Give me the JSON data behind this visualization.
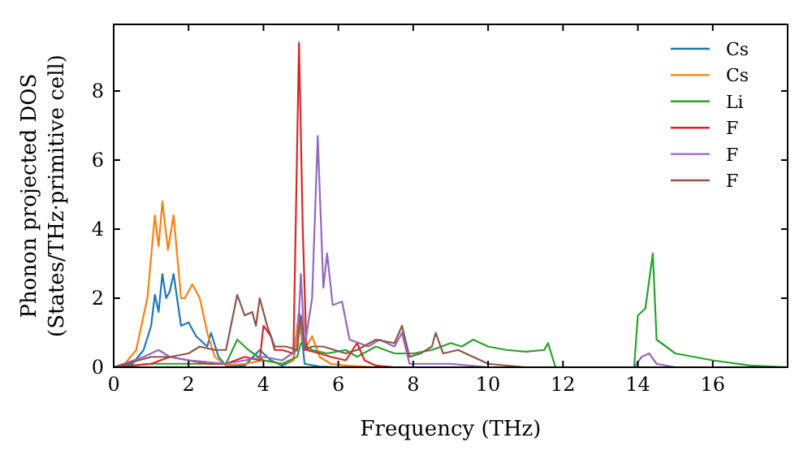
{
  "chart_data": {
    "type": "line",
    "xlabel": "Frequency (THz)",
    "ylabel": "Phonon projected DOS\n(States/THz·primitive cell)",
    "xlim": [
      0,
      18
    ],
    "xticks": [
      0,
      2,
      4,
      6,
      8,
      10,
      12,
      14,
      16
    ],
    "ylim": [
      0,
      9.93
    ],
    "yticks": [
      0,
      2,
      4,
      6,
      8
    ],
    "grid": false,
    "legend": "top right",
    "marker": "none",
    "line_style": "solid",
    "series": [
      {
        "name": "Cs",
        "color": "#1f77b4",
        "x": [
          0,
          0.5,
          0.8,
          1.0,
          1.1,
          1.2,
          1.3,
          1.4,
          1.5,
          1.6,
          1.8,
          2.0,
          2.2,
          2.5,
          2.6,
          2.8,
          3.0,
          3.5,
          3.9,
          4.2,
          4.5,
          4.8,
          4.95,
          5.1,
          5.5,
          6
        ],
        "values": [
          0,
          0.1,
          0.5,
          1.2,
          2.1,
          1.6,
          2.7,
          2.0,
          2.2,
          2.7,
          1.2,
          1.3,
          0.9,
          0.6,
          1.0,
          0.3,
          0.05,
          0.05,
          0.5,
          0.2,
          0.05,
          0.2,
          1.6,
          0.1,
          0.02,
          0
        ]
      },
      {
        "name": "Cs",
        "color": "#ff7f0e",
        "x": [
          0,
          0.3,
          0.6,
          0.9,
          1.1,
          1.2,
          1.3,
          1.45,
          1.6,
          1.8,
          1.9,
          2.1,
          2.3,
          2.5,
          2.7,
          3.0,
          3.5,
          4.0,
          4.5,
          4.8,
          4.95,
          5.1,
          5.3,
          5.5,
          5.8,
          6.2,
          7,
          18
        ],
        "values": [
          0,
          0.1,
          0.5,
          2.0,
          4.4,
          3.5,
          4.8,
          3.4,
          4.4,
          2.0,
          2.0,
          2.4,
          2.0,
          1.0,
          0.3,
          0.05,
          0.1,
          0.2,
          0.1,
          0.2,
          1.5,
          0.5,
          0.9,
          0.3,
          0.1,
          0.05,
          0,
          0
        ]
      },
      {
        "name": "Li",
        "color": "#2ca02c",
        "x": [
          0,
          1,
          2,
          3.0,
          3.3,
          3.6,
          4.0,
          4.5,
          4.9,
          5.0,
          5.3,
          5.7,
          6.2,
          6.5,
          7.0,
          7.5,
          8.0,
          8.5,
          9.0,
          9.3,
          9.6,
          10.0,
          10.5,
          11.0,
          11.5,
          11.6,
          11.8,
          13.9,
          14.0,
          14.2,
          14.4,
          14.5,
          15,
          15.5,
          16,
          17,
          18
        ],
        "values": [
          0,
          0.1,
          0.1,
          0.1,
          0.8,
          0.5,
          0.2,
          0.1,
          0.3,
          0.7,
          0.5,
          0.4,
          0.5,
          0.3,
          0.6,
          0.4,
          0.4,
          0.5,
          0.7,
          0.6,
          0.8,
          0.6,
          0.5,
          0.45,
          0.5,
          0.7,
          0,
          0,
          1.5,
          1.7,
          3.3,
          0.8,
          0.4,
          0.3,
          0.2,
          0.05,
          0
        ]
      },
      {
        "name": "F",
        "color": "#d62728",
        "x": [
          0,
          1,
          1.5,
          2.5,
          3.0,
          3.5,
          3.9,
          4.0,
          4.2,
          4.3,
          4.5,
          4.8,
          4.95,
          5.05,
          5.15,
          5.5,
          5.8,
          6.2,
          6.5,
          6.7,
          7,
          7.5,
          18
        ],
        "values": [
          0,
          0.1,
          0.3,
          0.1,
          0.1,
          0.3,
          0.2,
          1.2,
          0.9,
          0.5,
          0.5,
          0.4,
          9.4,
          4.0,
          0.5,
          0.4,
          0.3,
          0.2,
          0.7,
          0.2,
          0.05,
          0,
          0
        ]
      },
      {
        "name": "F",
        "color": "#9467bd",
        "x": [
          0,
          0.8,
          1.2,
          1.5,
          2,
          3,
          3.5,
          4.0,
          4.5,
          4.9,
          5.0,
          5.1,
          5.3,
          5.45,
          5.6,
          5.7,
          5.85,
          6.1,
          6.3,
          6.8,
          7.1,
          7.5,
          7.7,
          7.9,
          9,
          10,
          13.9,
          14.1,
          14.3,
          14.5,
          15,
          18
        ],
        "values": [
          0,
          0.3,
          0.5,
          0.3,
          0.2,
          0.1,
          0.2,
          0.3,
          0.2,
          0.5,
          2.7,
          0.6,
          2.0,
          6.7,
          2.3,
          3.3,
          1.8,
          1.9,
          0.8,
          0.6,
          0.8,
          0.6,
          1.0,
          0.1,
          0.1,
          0,
          0,
          0.3,
          0.4,
          0.1,
          0,
          0
        ]
      },
      {
        "name": "F",
        "color": "#8c564b",
        "x": [
          0,
          1,
          1.5,
          2.0,
          2.3,
          2.7,
          3.0,
          3.3,
          3.5,
          3.7,
          3.8,
          3.9,
          4.1,
          4.3,
          4.6,
          4.9,
          5.0,
          5.1,
          5.3,
          5.6,
          6.2,
          6.5,
          7,
          7.5,
          7.7,
          7.9,
          8.2,
          8.5,
          8.6,
          8.8,
          9.2,
          9.6,
          10,
          11,
          18
        ],
        "values": [
          0,
          0.3,
          0.3,
          0.4,
          0.6,
          0.5,
          0.5,
          2.1,
          1.5,
          1.6,
          1.2,
          2.0,
          1.2,
          0.6,
          0.6,
          0.5,
          1.5,
          0.5,
          0.6,
          0.6,
          0.4,
          0.5,
          0.8,
          0.7,
          1.2,
          0.3,
          0.4,
          0.6,
          1.0,
          0.4,
          0.5,
          0.3,
          0.1,
          0,
          0
        ]
      }
    ]
  }
}
